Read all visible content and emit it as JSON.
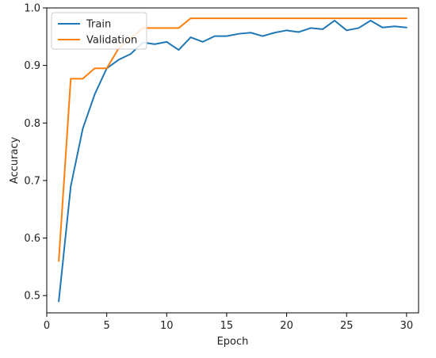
{
  "chart_data": {
    "type": "line",
    "title": "",
    "xlabel": "Epoch",
    "ylabel": "Accuracy",
    "xlim": [
      0,
      31
    ],
    "ylim": [
      0.47,
      1.0
    ],
    "x_ticks": [
      0,
      5,
      10,
      15,
      20,
      25,
      30
    ],
    "y_ticks": [
      0.5,
      0.6,
      0.7,
      0.8,
      0.9,
      1.0
    ],
    "legend_position": "top-left",
    "grid": false,
    "x": [
      1,
      2,
      3,
      4,
      5,
      6,
      7,
      8,
      9,
      10,
      11,
      12,
      13,
      14,
      15,
      16,
      17,
      18,
      19,
      20,
      21,
      22,
      23,
      24,
      25,
      26,
      27,
      28,
      29,
      30
    ],
    "series": [
      {
        "name": "Train",
        "color": "#1f77b4",
        "values": [
          0.49,
          0.69,
          0.79,
          0.85,
          0.895,
          0.91,
          0.92,
          0.94,
          0.937,
          0.941,
          0.927,
          0.949,
          0.941,
          0.951,
          0.951,
          0.955,
          0.957,
          0.951,
          0.957,
          0.961,
          0.958,
          0.965,
          0.963,
          0.978,
          0.961,
          0.965,
          0.978,
          0.966,
          0.968,
          0.966
        ]
      },
      {
        "name": "Validation",
        "color": "#ff7f0e",
        "values": [
          0.56,
          0.877,
          0.877,
          0.895,
          0.895,
          0.93,
          0.947,
          0.965,
          0.965,
          0.965,
          0.965,
          0.982,
          0.982,
          0.982,
          0.982,
          0.982,
          0.982,
          0.982,
          0.982,
          0.982,
          0.982,
          0.982,
          0.982,
          0.982,
          0.982,
          0.982,
          0.982,
          0.982,
          0.982,
          0.982
        ]
      }
    ]
  }
}
